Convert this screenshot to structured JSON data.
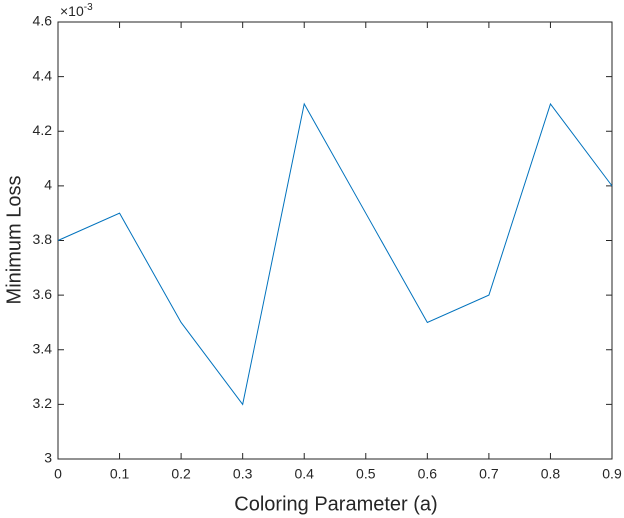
{
  "chart_data": {
    "type": "line",
    "x_label": "Coloring Parameter (a)",
    "y_label": "Minimum Loss",
    "y_exponent_base": "×10",
    "y_exponent_power": "-3",
    "x": [
      0,
      0.1,
      0.2,
      0.3,
      0.4,
      0.5,
      0.6,
      0.7,
      0.8,
      0.9
    ],
    "series": [
      {
        "color": "#0072bd",
        "values": [
          3.8,
          3.9,
          3.5,
          3.2,
          4.3,
          3.9,
          3.5,
          3.6,
          4.3,
          4.0
        ]
      }
    ],
    "xlim": [
      0,
      0.9
    ],
    "xticks": [
      0,
      0.1,
      0.2,
      0.3,
      0.4,
      0.5,
      0.6,
      0.7,
      0.8,
      0.9
    ],
    "ylim": [
      3,
      4.6
    ],
    "yticks": [
      3,
      3.2,
      3.4,
      3.6,
      3.8,
      4,
      4.2,
      4.4,
      4.6
    ],
    "grid": false
  }
}
